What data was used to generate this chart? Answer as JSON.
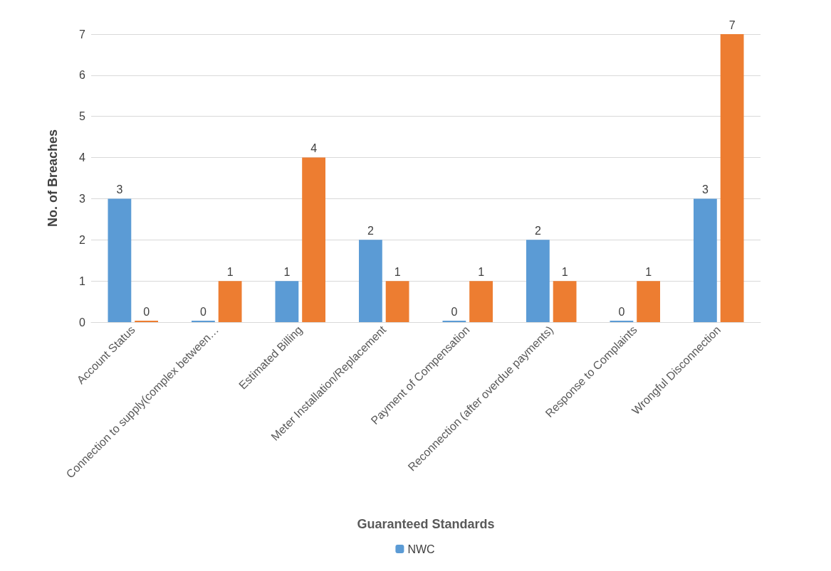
{
  "chart_data": {
    "type": "bar",
    "xlabel": "Guaranteed Standards",
    "ylabel": "No. of Breaches",
    "categories": [
      "Account Status",
      "Connection to supply(complex between…",
      "Estimated Billing",
      "Meter Installation/Replacement",
      "Payment of Compensation",
      "Reconnection (after overdue payments)",
      "Response to Complaints",
      "Wrongful Disconnection"
    ],
    "series": [
      {
        "name": "NWC",
        "color": "#5b9bd5",
        "values": [
          3,
          0,
          1,
          2,
          0,
          2,
          0,
          3
        ]
      },
      {
        "color": "#ed7d31",
        "values": [
          0,
          1,
          4,
          1,
          1,
          1,
          1,
          7
        ]
      }
    ],
    "ylim": [
      0,
      7
    ],
    "yticks": [
      0,
      1,
      2,
      3,
      4,
      5,
      6,
      7
    ],
    "grid": "y",
    "data_labels": true,
    "legend": "bottom"
  }
}
